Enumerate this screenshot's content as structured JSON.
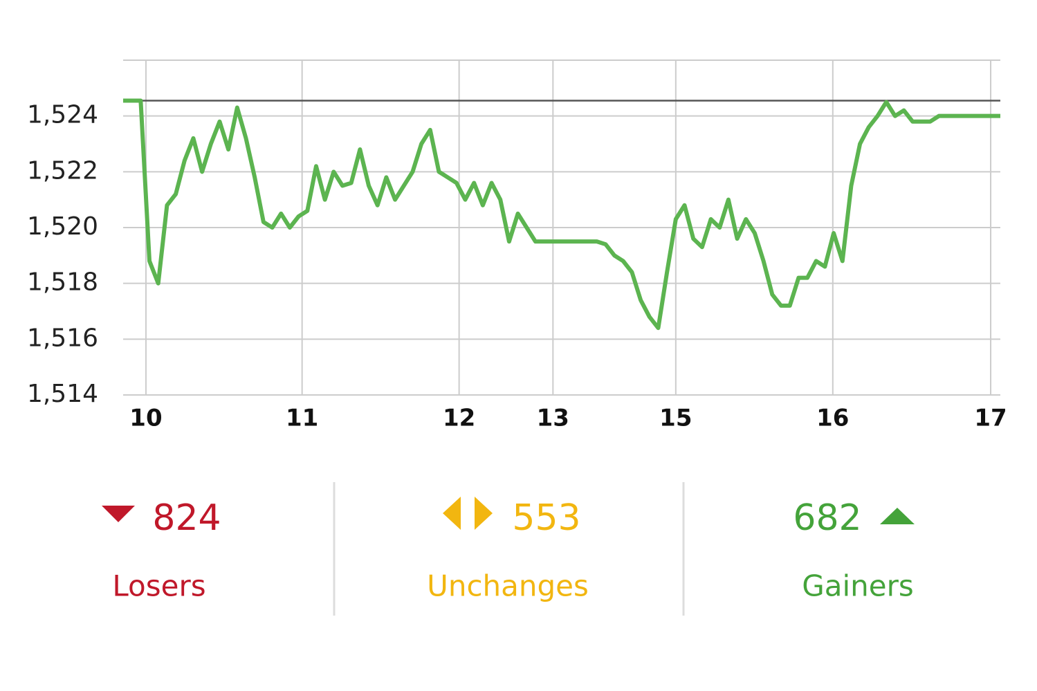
{
  "chart_data": {
    "type": "line",
    "values": [
      1524.55,
      1524.55,
      1524.55,
      1518.8,
      1518,
      1520.8,
      1521.2,
      1522.4,
      1523.2,
      1522,
      1523,
      1523.8,
      1522.8,
      1524.3,
      1523.2,
      1521.8,
      1520.2,
      1520,
      1520.5,
      1520,
      1520.4,
      1520.6,
      1522.2,
      1521,
      1522,
      1521.5,
      1521.6,
      1522.8,
      1521.5,
      1520.8,
      1521.8,
      1521,
      1521.5,
      1522,
      1523,
      1523.5,
      1522,
      1521.8,
      1521.6,
      1521,
      1521.6,
      1520.8,
      1521.6,
      1521,
      1519.5,
      1520.5,
      1520,
      1519.5,
      1519.5,
      1519.5,
      1519.5,
      1519.5,
      1519.5,
      1519.5,
      1519.5,
      1519.4,
      1519,
      1518.8,
      1518.4,
      1517.4,
      1516.8,
      1516.4,
      1518.4,
      1520.3,
      1520.8,
      1519.6,
      1519.3,
      1520.3,
      1520,
      1521,
      1519.6,
      1520.3,
      1519.8,
      1518.8,
      1517.6,
      1517.2,
      1517.2,
      1518.2,
      1518.2,
      1518.8,
      1518.6,
      1519.8,
      1518.8,
      1521.5,
      1523,
      1523.6,
      1524,
      1524.5,
      1524,
      1524.2,
      1523.8,
      1523.8,
      1523.8,
      1524,
      1524,
      1524,
      1524,
      1524,
      1524,
      1524,
      1524
    ],
    "color": "#5cb450",
    "reference": 1524.55,
    "xlim": [
      0,
      100
    ],
    "xticks": [
      {
        "value": 2.6,
        "label": "10"
      },
      {
        "value": 20.4,
        "label": "11"
      },
      {
        "value": 38.3,
        "label": "12"
      },
      {
        "value": 49.0,
        "label": "13"
      },
      {
        "value": 63.0,
        "label": "15"
      },
      {
        "value": 80.9,
        "label": "16"
      },
      {
        "value": 98.9,
        "label": "17"
      }
    ],
    "ylim": [
      1514,
      1526
    ],
    "yticks": [
      {
        "value": 1514,
        "label": "1,514"
      },
      {
        "value": 1516,
        "label": "1,516"
      },
      {
        "value": 1518,
        "label": "1,518"
      },
      {
        "value": 1520,
        "label": "1,520"
      },
      {
        "value": 1522,
        "label": "1,522"
      },
      {
        "value": 1524,
        "label": "1,524"
      }
    ],
    "grid": true
  },
  "summary": [
    {
      "value": "824",
      "label": "Losers",
      "color": "#c0182a"
    },
    {
      "value": "553",
      "label": "Unchanges",
      "color": "#f2b610"
    },
    {
      "value": "682",
      "label": "Gainers",
      "color": "#44a33a"
    }
  ]
}
